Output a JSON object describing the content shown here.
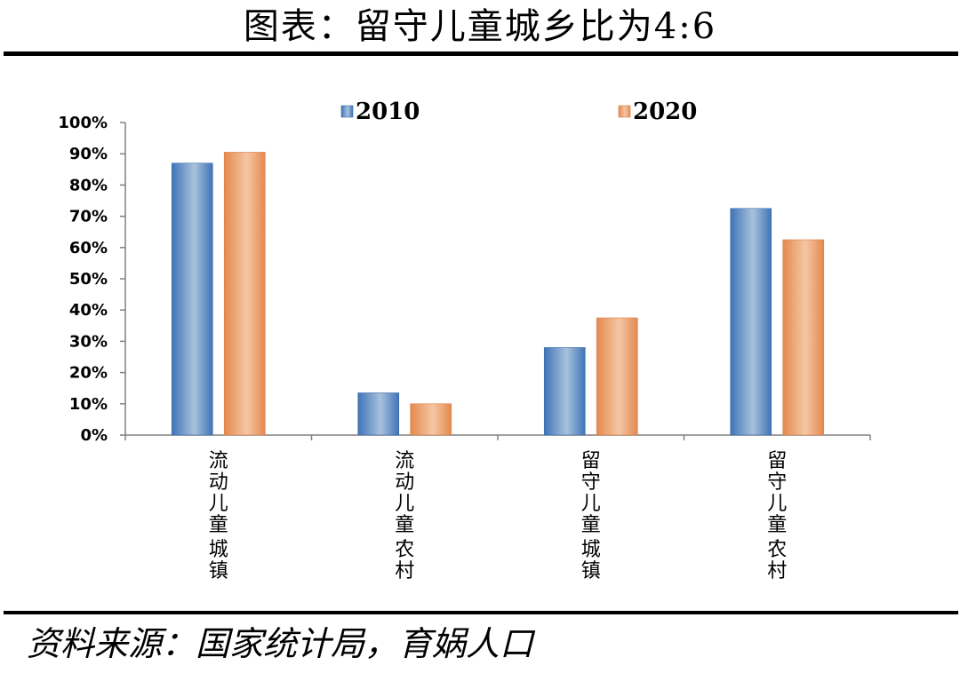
{
  "title": "图表：留守儿童城乡比为4:6",
  "source": "资料来源：国家统计局，育娲人口",
  "chart_data": {
    "type": "bar",
    "categories": [
      "流动儿童-城镇",
      "流动儿童-农村",
      "留守儿童-城镇",
      "留守儿童-农村"
    ],
    "series": [
      {
        "name": "2010",
        "values": [
          87,
          13.5,
          28,
          72.5
        ],
        "color": "#5b8fc7"
      },
      {
        "name": "2020",
        "values": [
          90.5,
          10,
          37.5,
          62.5
        ],
        "color": "#eba57a"
      }
    ],
    "yticks": [
      "0%",
      "10%",
      "20%",
      "30%",
      "40%",
      "50%",
      "60%",
      "70%",
      "80%",
      "90%",
      "100%"
    ],
    "ylim": [
      0,
      100
    ],
    "legend": "top"
  }
}
